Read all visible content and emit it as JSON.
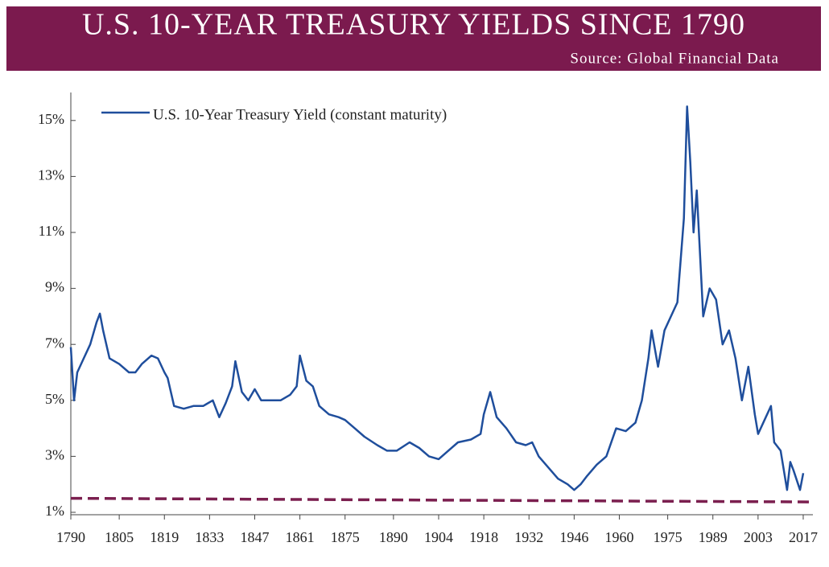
{
  "chart_data": {
    "type": "line",
    "title": "U.S. 10-YEAR TREASURY YIELDS SINCE 1790",
    "subtitle": "Source: Global Financial Data",
    "x": [
      1790,
      1791,
      1792,
      1794,
      1796,
      1798,
      1799,
      1800,
      1802,
      1805,
      1808,
      1810,
      1812,
      1815,
      1817,
      1819,
      1820,
      1822,
      1825,
      1828,
      1831,
      1834,
      1836,
      1838,
      1840,
      1841,
      1843,
      1845,
      1847,
      1849,
      1852,
      1855,
      1858,
      1860,
      1861,
      1863,
      1865,
      1867,
      1870,
      1873,
      1875,
      1878,
      1881,
      1885,
      1888,
      1891,
      1895,
      1898,
      1901,
      1904,
      1907,
      1910,
      1914,
      1917,
      1918,
      1920,
      1922,
      1925,
      1928,
      1931,
      1933,
      1935,
      1938,
      1941,
      1944,
      1946,
      1948,
      1950,
      1953,
      1956,
      1959,
      1962,
      1965,
      1967,
      1969,
      1970,
      1972,
      1974,
      1976,
      1978,
      1980,
      1981,
      1982,
      1983,
      1984,
      1986,
      1988,
      1990,
      1992,
      1994,
      1996,
      1998,
      2000,
      2002,
      2003,
      2005,
      2007,
      2008,
      2010,
      2012,
      2013,
      2014,
      2016,
      2017
    ],
    "series": [
      {
        "name": "U.S. 10-Year Treasury Yield (constant maturity)",
        "color": "#1f4e9c",
        "values": [
          6.9,
          5.0,
          6.0,
          6.5,
          7.0,
          7.8,
          8.1,
          7.5,
          6.5,
          6.3,
          6.0,
          6.0,
          6.3,
          6.6,
          6.5,
          6.0,
          5.8,
          4.8,
          4.7,
          4.8,
          4.8,
          5.0,
          4.4,
          4.9,
          5.5,
          6.4,
          5.3,
          5.0,
          5.4,
          5.0,
          5.0,
          5.0,
          5.2,
          5.5,
          6.6,
          5.7,
          5.5,
          4.8,
          4.5,
          4.4,
          4.3,
          4.0,
          3.7,
          3.4,
          3.2,
          3.2,
          3.5,
          3.3,
          3.0,
          2.9,
          3.2,
          3.5,
          3.6,
          3.8,
          4.5,
          5.3,
          4.4,
          4.0,
          3.5,
          3.4,
          3.5,
          3.0,
          2.6,
          2.2,
          2.0,
          1.8,
          2.0,
          2.3,
          2.7,
          3.0,
          4.0,
          3.9,
          4.2,
          5.0,
          6.5,
          7.5,
          6.2,
          7.5,
          8.0,
          8.5,
          11.5,
          15.5,
          13.5,
          11.0,
          12.5,
          8.0,
          9.0,
          8.6,
          7.0,
          7.5,
          6.5,
          5.0,
          6.2,
          4.5,
          3.8,
          4.3,
          4.8,
          3.5,
          3.2,
          1.8,
          2.8,
          2.5,
          1.8,
          2.4
        ]
      }
    ],
    "reference_line": {
      "x": [
        1790,
        2020
      ],
      "y": [
        1.5,
        1.37
      ],
      "color": "#7b1f4f"
    },
    "xlim": [
      1790,
      2020
    ],
    "xticks": [
      1790,
      1805,
      1819,
      1833,
      1847,
      1861,
      1875,
      1890,
      1904,
      1918,
      1932,
      1946,
      1960,
      1975,
      1989,
      2003,
      2017
    ],
    "ylim": [
      1,
      16
    ],
    "yticks": [
      {
        "value": 1,
        "label": "1%"
      },
      {
        "value": 3,
        "label": "3%"
      },
      {
        "value": 5,
        "label": "5%"
      },
      {
        "value": 7,
        "label": "7%"
      },
      {
        "value": 9,
        "label": "9%"
      },
      {
        "value": 11,
        "label": "11%"
      },
      {
        "value": 13,
        "label": "13%"
      },
      {
        "value": 15,
        "label": "15%"
      }
    ],
    "header_color": "#7b1a4e"
  }
}
